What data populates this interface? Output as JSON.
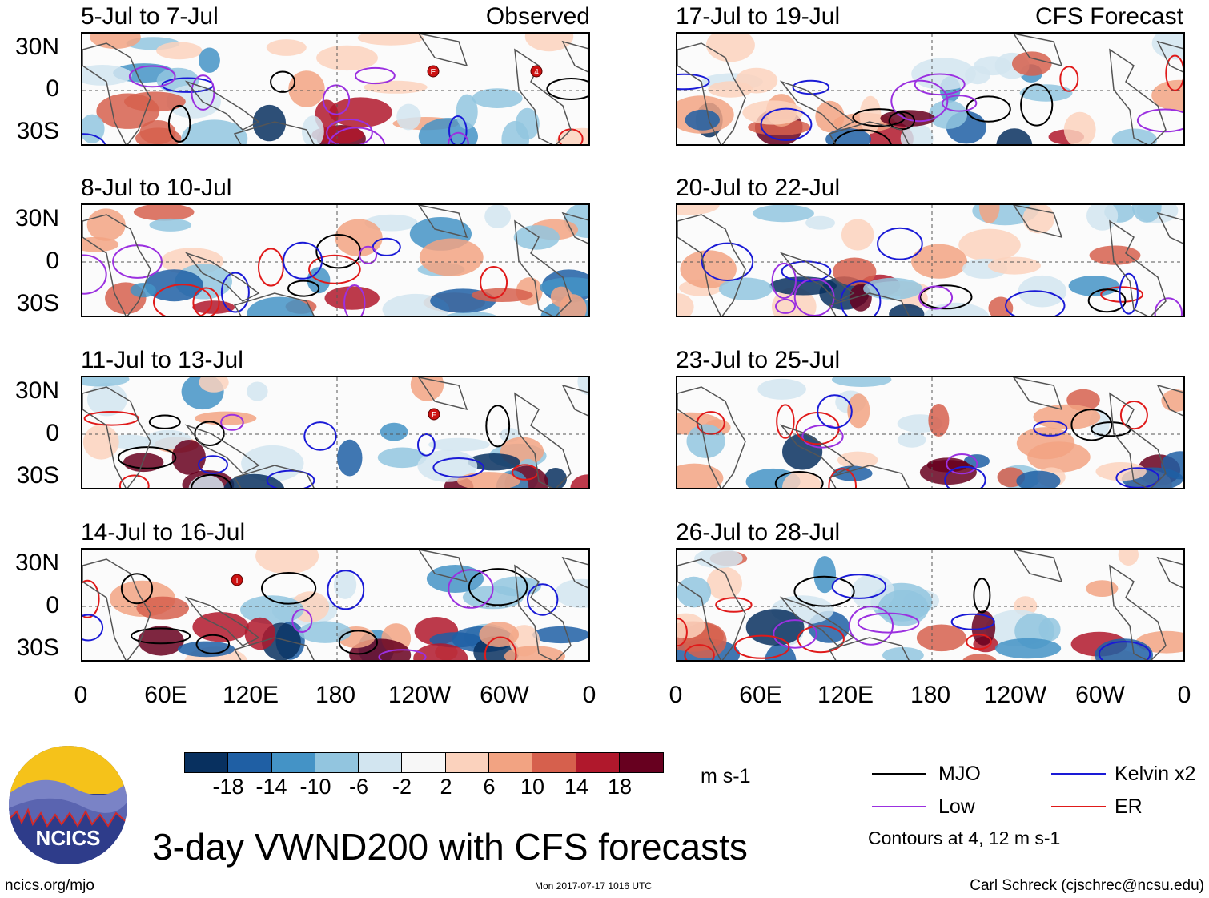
{
  "title": "3-day VWND200 with CFS forecasts",
  "columns": {
    "left_tag": "Observed",
    "right_tag": "CFS Forecast"
  },
  "panels_left": [
    {
      "title": "5-Jul to 7-Jul"
    },
    {
      "title": "8-Jul to 10-Jul"
    },
    {
      "title": "11-Jul to 13-Jul"
    },
    {
      "title": "14-Jul to 16-Jul"
    }
  ],
  "panels_right": [
    {
      "title": "17-Jul to 19-Jul"
    },
    {
      "title": "20-Jul to 22-Jul"
    },
    {
      "title": "23-Jul to 25-Jul"
    },
    {
      "title": "26-Jul to 28-Jul"
    }
  ],
  "y_ticks": [
    "30N",
    "0",
    "30S"
  ],
  "x_ticks": [
    "0",
    "60E",
    "120E",
    "180",
    "120W",
    "60W",
    "0"
  ],
  "colorbar": {
    "labels": [
      "-18",
      "-14",
      "-10",
      "-6",
      "-2",
      "2",
      "6",
      "10",
      "14",
      "18"
    ],
    "colors": [
      "#08305f",
      "#1f5fa4",
      "#4493c6",
      "#92c5df",
      "#d2e5f0",
      "#f7f7f7",
      "#fbd2bd",
      "#f2a382",
      "#d6604d",
      "#b0182c",
      "#67001f"
    ],
    "units": "m s-1"
  },
  "legend": {
    "items": [
      {
        "label": "MJO",
        "color": "#000000"
      },
      {
        "label": "Kelvin x2",
        "color": "#1a1ad6"
      },
      {
        "label": "Low",
        "color": "#9b30e0"
      },
      {
        "label": "ER",
        "color": "#e01a1a"
      }
    ],
    "note": "Contours at 4, 12 m s-1"
  },
  "storm_markers": [
    "E",
    "4",
    "F",
    "T"
  ],
  "logo_text": "NCICS",
  "footer": {
    "website": "ncics.org/mjo",
    "timestamp": "Mon 2017-07-17 1016 UTC",
    "author": "Carl Schreck (cjschrec@ncsu.edu)"
  }
}
